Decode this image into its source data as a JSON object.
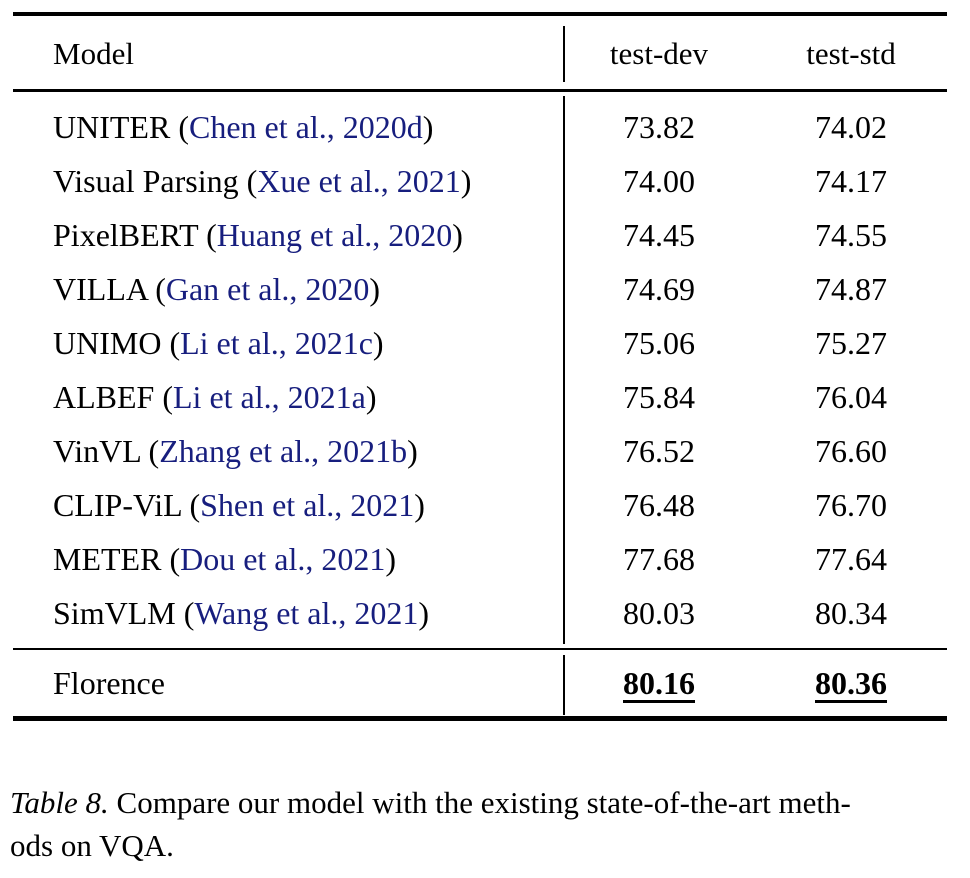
{
  "colors": {
    "citation": "#171e7e",
    "text": "#000000"
  },
  "punct": {
    "open": "(",
    "close": ")"
  },
  "table": {
    "columns": {
      "model": "Model",
      "test_dev": "test-dev",
      "test_std": "test-std"
    },
    "rows": [
      {
        "name": "UNITER",
        "cite": "Chen et al., 2020d",
        "test_dev": "73.82",
        "test_std": "74.02"
      },
      {
        "name": "Visual Parsing",
        "cite": "Xue et al., 2021",
        "test_dev": "74.00",
        "test_std": "74.17"
      },
      {
        "name": "PixelBERT",
        "cite": "Huang et al., 2020",
        "test_dev": "74.45",
        "test_std": "74.55"
      },
      {
        "name": "VILLA",
        "cite": "Gan et al., 2020",
        "test_dev": "74.69",
        "test_std": "74.87"
      },
      {
        "name": "UNIMO",
        "cite": "Li et al., 2021c",
        "test_dev": "75.06",
        "test_std": "75.27"
      },
      {
        "name": "ALBEF",
        "cite": "Li et al., 2021a",
        "test_dev": "75.84",
        "test_std": "76.04"
      },
      {
        "name": "VinVL",
        "cite": "Zhang et al., 2021b",
        "test_dev": "76.52",
        "test_std": "76.60"
      },
      {
        "name": "CLIP-ViL",
        "cite": "Shen et al., 2021",
        "test_dev": "76.48",
        "test_std": "76.70"
      },
      {
        "name": "METER",
        "cite": "Dou et al., 2021",
        "test_dev": "77.68",
        "test_std": "77.64"
      },
      {
        "name": "SimVLM",
        "cite": "Wang et al., 2021",
        "test_dev": "80.03",
        "test_std": "80.34"
      }
    ],
    "florence": {
      "name": "Florence",
      "test_dev": "80.16",
      "test_std": "80.36"
    }
  },
  "caption": {
    "label": "Table 8.",
    "line1": "Compare our model with the existing state-of-the-art meth-",
    "line2": "ods on VQA."
  }
}
